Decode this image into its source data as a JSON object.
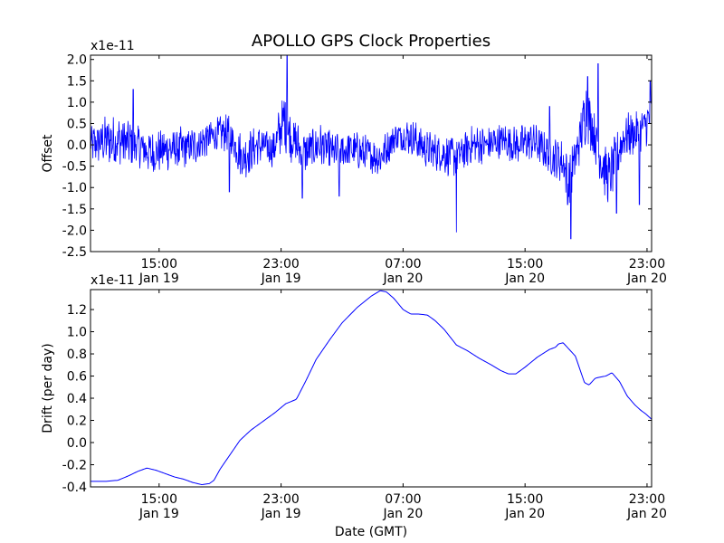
{
  "title": "APOLLO GPS Clock Properties",
  "chart_data": [
    {
      "type": "line",
      "ylabel": "Offset",
      "y_scale_label": "x1e-11",
      "ylim": [
        -2.5,
        2.1
      ],
      "yticks": [
        "-2.5",
        "-2.0",
        "-1.5",
        "-1.0",
        "-0.5",
        "0.0",
        "0.5",
        "1.0",
        "1.5",
        "2.0"
      ],
      "ytick_values": [
        -2.5,
        -2.0,
        -1.5,
        -1.0,
        -0.5,
        0.0,
        0.5,
        1.0,
        1.5,
        2.0
      ],
      "x_axis": "hours from Jan 19 00:00 GMT",
      "xlim": [
        10.5,
        47.3
      ],
      "xticks": [
        {
          "time": "15:00",
          "date": "Jan 19",
          "hour": 15
        },
        {
          "time": "23:00",
          "date": "Jan 19",
          "hour": 23
        },
        {
          "time": "07:00",
          "date": "Jan 20",
          "hour": 31
        },
        {
          "time": "15:00",
          "date": "Jan 20",
          "hour": 39
        },
        {
          "time": "23:00",
          "date": "Jan 20",
          "hour": 47
        }
      ],
      "grid": false,
      "color": "#0000ff",
      "series": [
        {
          "style": "noisy-line",
          "hour": [
            10.5,
            11.5,
            12.5,
            13.5,
            14.5,
            15.5,
            16.5,
            17.5,
            18.5,
            19.5,
            20.5,
            21.5,
            22.5,
            23.2,
            23.6,
            24.5,
            25.5,
            26.5,
            27.5,
            28.5,
            29.5,
            30.5,
            31.5,
            32.5,
            33.5,
            34.5,
            35.5,
            36.5,
            37.5,
            38.5,
            39.5,
            40.5,
            41.5,
            41.9,
            42.5,
            43.0,
            43.5,
            44.0,
            44.5,
            45.5,
            46.5,
            47.0,
            47.3
          ],
          "center": [
            0.0,
            0.1,
            0.1,
            0.0,
            -0.2,
            -0.1,
            -0.1,
            0.0,
            0.2,
            0.3,
            -0.3,
            0.0,
            -0.1,
            0.6,
            0.2,
            -0.2,
            0.0,
            -0.2,
            -0.1,
            -0.2,
            -0.3,
            0.2,
            0.2,
            -0.1,
            -0.2,
            -0.3,
            0.0,
            0.0,
            0.1,
            0.0,
            0.1,
            -0.2,
            -0.4,
            -0.9,
            0.0,
            0.8,
            0.3,
            -0.4,
            -0.8,
            0.2,
            0.3,
            0.5,
            0.7
          ],
          "noise_amp": [
            0.3,
            0.4,
            0.4,
            0.35,
            0.35,
            0.35,
            0.35,
            0.3,
            0.3,
            0.3,
            0.4,
            0.3,
            0.3,
            0.5,
            0.4,
            0.35,
            0.35,
            0.35,
            0.3,
            0.3,
            0.3,
            0.25,
            0.3,
            0.3,
            0.3,
            0.35,
            0.3,
            0.3,
            0.3,
            0.3,
            0.3,
            0.3,
            0.35,
            0.45,
            0.4,
            0.5,
            0.4,
            0.4,
            0.45,
            0.35,
            0.35,
            0.35,
            0.35
          ],
          "spikes": [
            {
              "hour": 13.3,
              "value": 1.3
            },
            {
              "hour": 19.6,
              "value": -1.1
            },
            {
              "hour": 23.4,
              "value": 2.1
            },
            {
              "hour": 24.4,
              "value": -1.25
            },
            {
              "hour": 26.8,
              "value": -1.2
            },
            {
              "hour": 34.5,
              "value": -2.05
            },
            {
              "hour": 40.6,
              "value": 0.9
            },
            {
              "hour": 41.8,
              "value": -1.4
            },
            {
              "hour": 42.0,
              "value": -2.2
            },
            {
              "hour": 43.1,
              "value": 1.6
            },
            {
              "hour": 43.8,
              "value": 1.9
            },
            {
              "hour": 45.0,
              "value": -1.6
            },
            {
              "hour": 46.5,
              "value": -1.4
            },
            {
              "hour": 47.2,
              "value": 1.5
            }
          ]
        }
      ]
    },
    {
      "type": "line",
      "ylabel": "Drift (per day)",
      "y_scale_label": "x1e-11",
      "xlabel": "Date (GMT)",
      "ylim": [
        -0.4,
        1.38
      ],
      "yticks": [
        "-0.4",
        "-0.2",
        "0.0",
        "0.2",
        "0.4",
        "0.6",
        "0.8",
        "1.0",
        "1.2"
      ],
      "ytick_values": [
        -0.4,
        -0.2,
        0.0,
        0.2,
        0.4,
        0.6,
        0.8,
        1.0,
        1.2
      ],
      "x_axis": "hours from Jan 19 00:00 GMT",
      "xlim": [
        10.5,
        47.3
      ],
      "xticks": [
        {
          "time": "15:00",
          "date": "Jan 19",
          "hour": 15
        },
        {
          "time": "23:00",
          "date": "Jan 19",
          "hour": 23
        },
        {
          "time": "07:00",
          "date": "Jan 20",
          "hour": 31
        },
        {
          "time": "15:00",
          "date": "Jan 20",
          "hour": 39
        },
        {
          "time": "23:00",
          "date": "Jan 20",
          "hour": 47
        }
      ],
      "grid": false,
      "color": "#0000ff",
      "series": [
        {
          "style": "line",
          "hour": [
            10.5,
            11.5,
            12.3,
            13.0,
            13.6,
            14.2,
            14.8,
            15.4,
            16.0,
            16.6,
            17.2,
            17.8,
            18.3,
            18.6,
            19.0,
            19.6,
            20.3,
            21.0,
            21.8,
            22.6,
            23.3,
            24.0,
            24.6,
            25.3,
            26.2,
            27.0,
            28.0,
            28.9,
            29.5,
            29.9,
            30.4,
            31.0,
            31.5,
            32.0,
            32.6,
            33.1,
            33.7,
            34.5,
            35.2,
            36.0,
            36.8,
            37.4,
            37.9,
            38.4,
            39.0,
            39.8,
            40.6,
            41.0,
            41.2,
            41.5,
            41.9,
            42.3,
            42.6,
            42.9,
            43.2,
            43.6,
            43.9,
            44.3,
            44.7,
            45.2,
            45.7,
            46.2,
            46.6,
            46.9,
            47.3
          ],
          "value": [
            -0.35,
            -0.35,
            -0.34,
            -0.3,
            -0.26,
            -0.23,
            -0.25,
            -0.28,
            -0.31,
            -0.33,
            -0.36,
            -0.38,
            -0.37,
            -0.34,
            -0.24,
            -0.12,
            0.02,
            0.11,
            0.19,
            0.27,
            0.35,
            0.39,
            0.55,
            0.75,
            0.93,
            1.08,
            1.22,
            1.32,
            1.37,
            1.36,
            1.3,
            1.2,
            1.16,
            1.16,
            1.15,
            1.1,
            1.02,
            0.88,
            0.83,
            0.76,
            0.7,
            0.65,
            0.62,
            0.62,
            0.68,
            0.77,
            0.84,
            0.86,
            0.89,
            0.9,
            0.84,
            0.78,
            0.66,
            0.54,
            0.52,
            0.58,
            0.59,
            0.6,
            0.63,
            0.55,
            0.42,
            0.34,
            0.29,
            0.26,
            0.21
          ]
        }
      ]
    }
  ]
}
